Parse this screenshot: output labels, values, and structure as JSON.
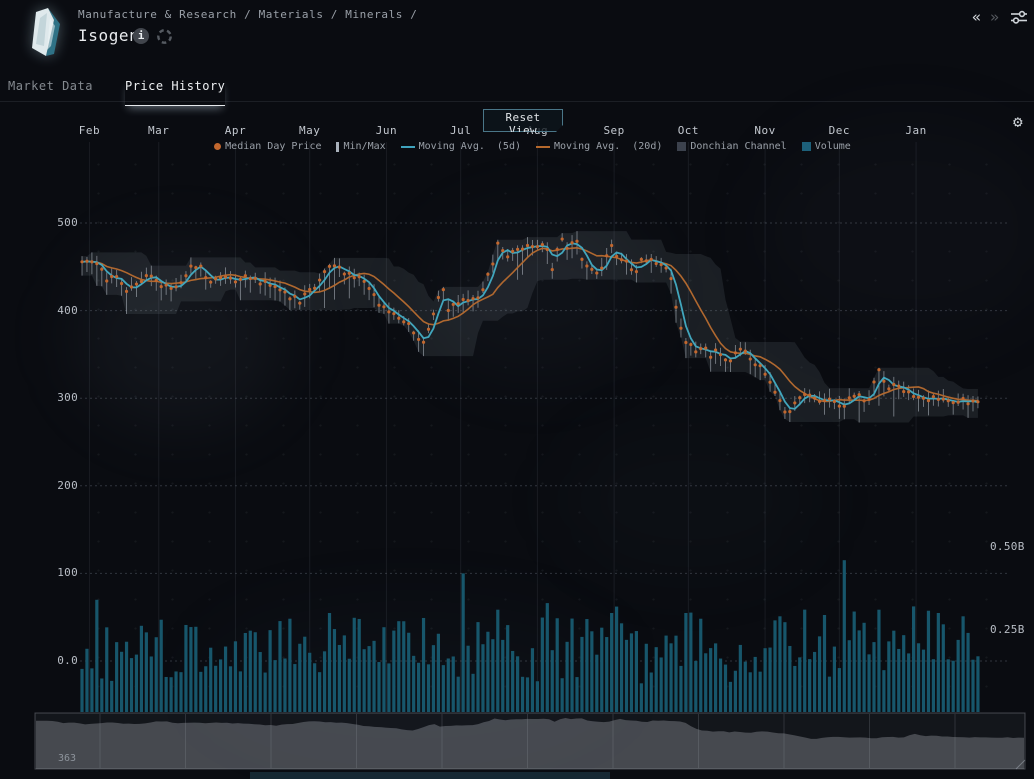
{
  "header": {
    "breadcrumb": "Manufacture & Research / Materials / Minerals /",
    "title": "Isogen"
  },
  "icons": {
    "info": "i",
    "gear": "⚙",
    "item_icon_name": "isogen-crystal"
  },
  "nav": {
    "back": "«",
    "forward": "»"
  },
  "tabs": [
    {
      "label": "Market Data",
      "active": false
    },
    {
      "label": "Price History",
      "active": true
    }
  ],
  "chart_data": {
    "type": "line",
    "reset_button": "Reset View",
    "days_count": "363",
    "months": [
      "Feb",
      "Mar",
      "Apr",
      "May",
      "Jun",
      "Jul",
      "Aug",
      "Sep",
      "Oct",
      "Nov",
      "Dec",
      "Jan"
    ],
    "month_tick_days": [
      3,
      31,
      62,
      92,
      123,
      153,
      184,
      215,
      245,
      276,
      306,
      337
    ],
    "price_ticks": [
      {
        "label": "500",
        "value": 500
      },
      {
        "label": "400",
        "value": 400
      },
      {
        "label": "300",
        "value": 300
      },
      {
        "label": "200",
        "value": 200
      },
      {
        "label": "100",
        "value": 100
      },
      {
        "label": "0.0",
        "value": 0
      }
    ],
    "volume_ticks": [
      {
        "label": "0.50B",
        "value": 0.5
      },
      {
        "label": "0.25B",
        "value": 0.25
      }
    ],
    "price_axis_range": [
      0,
      520
    ],
    "volume_axis_range": [
      0,
      0.55
    ],
    "grid": true,
    "legend_position": "top-center",
    "legend": [
      {
        "label": "Median Day Price",
        "swatch": "dot",
        "color": "#c2672e"
      },
      {
        "label": "Min/Max",
        "swatch": "vbar",
        "color": "#aab2bc"
      },
      {
        "label": "Moving Avg.  (5d)",
        "swatch": "line",
        "color": "#3fa3bd"
      },
      {
        "label": "Moving Avg.  (20d)",
        "swatch": "line",
        "color": "#b5682c"
      },
      {
        "label": "Donchian Channel",
        "swatch": "square",
        "color": "#3c424d"
      },
      {
        "label": "Volume",
        "swatch": "square",
        "color": "#1d607a"
      }
    ],
    "total_days": 364,
    "sample_step_days": 2,
    "noise_seed": 42,
    "median_price_waypoints": [
      [
        0,
        455
      ],
      [
        5,
        458
      ],
      [
        10,
        436
      ],
      [
        14,
        442
      ],
      [
        18,
        424
      ],
      [
        23,
        428
      ],
      [
        27,
        446
      ],
      [
        31,
        430
      ],
      [
        36,
        424
      ],
      [
        41,
        432
      ],
      [
        44,
        452
      ],
      [
        48,
        448
      ],
      [
        53,
        430
      ],
      [
        57,
        441
      ],
      [
        62,
        434
      ],
      [
        66,
        440
      ],
      [
        70,
        434
      ],
      [
        75,
        430
      ],
      [
        80,
        424
      ],
      [
        85,
        415
      ],
      [
        88,
        411
      ],
      [
        92,
        424
      ],
      [
        95,
        428
      ],
      [
        98,
        448
      ],
      [
        102,
        453
      ],
      [
        106,
        444
      ],
      [
        110,
        439
      ],
      [
        114,
        432
      ],
      [
        118,
        415
      ],
      [
        120,
        405
      ],
      [
        123,
        400
      ],
      [
        127,
        391
      ],
      [
        132,
        384
      ],
      [
        137,
        360
      ],
      [
        139,
        365
      ],
      [
        141,
        387
      ],
      [
        144,
        415
      ],
      [
        146,
        421
      ],
      [
        148,
        402
      ],
      [
        152,
        410
      ],
      [
        157,
        412
      ],
      [
        161,
        414
      ],
      [
        164,
        443
      ],
      [
        166,
        455
      ],
      [
        168,
        477
      ],
      [
        170,
        465
      ],
      [
        171,
        455
      ],
      [
        173,
        468
      ],
      [
        176,
        470
      ],
      [
        179,
        471
      ],
      [
        183,
        473
      ],
      [
        186,
        474
      ],
      [
        189,
        470
      ],
      [
        190,
        450
      ],
      [
        192,
        468
      ],
      [
        195,
        485
      ],
      [
        196,
        471
      ],
      [
        198,
        475
      ],
      [
        200,
        477
      ],
      [
        202,
        455
      ],
      [
        204,
        449
      ],
      [
        206,
        446
      ],
      [
        209,
        446
      ],
      [
        211,
        449
      ],
      [
        213,
        483
      ],
      [
        215,
        460
      ],
      [
        217,
        462
      ],
      [
        220,
        457
      ],
      [
        222,
        449
      ],
      [
        224,
        444
      ],
      [
        226,
        462
      ],
      [
        228,
        460
      ],
      [
        230,
        462
      ],
      [
        232,
        452
      ],
      [
        234,
        450
      ],
      [
        236,
        448
      ],
      [
        238,
        438
      ],
      [
        240,
        405
      ],
      [
        242,
        381
      ],
      [
        244,
        366
      ],
      [
        246,
        358
      ],
      [
        249,
        353
      ],
      [
        251,
        360
      ],
      [
        254,
        349
      ],
      [
        257,
        354
      ],
      [
        259,
        346
      ],
      [
        262,
        346
      ],
      [
        265,
        355
      ],
      [
        267,
        360
      ],
      [
        270,
        342
      ],
      [
        272,
        337
      ],
      [
        274,
        338
      ],
      [
        277,
        327
      ],
      [
        279,
        308
      ],
      [
        281,
        300
      ],
      [
        283,
        296
      ],
      [
        285,
        275
      ],
      [
        287,
        289
      ],
      [
        290,
        301
      ],
      [
        293,
        303
      ],
      [
        295,
        301
      ],
      [
        297,
        298
      ],
      [
        299,
        300
      ],
      [
        302,
        301
      ],
      [
        305,
        295
      ],
      [
        308,
        293
      ],
      [
        310,
        298
      ],
      [
        312,
        300
      ],
      [
        314,
        301
      ],
      [
        316,
        296
      ],
      [
        319,
        305
      ],
      [
        321,
        338
      ],
      [
        323,
        331
      ],
      [
        325,
        310
      ],
      [
        328,
        315
      ],
      [
        330,
        313
      ],
      [
        333,
        309
      ],
      [
        335,
        304
      ],
      [
        337,
        301
      ],
      [
        340,
        298
      ],
      [
        343,
        300
      ],
      [
        345,
        298
      ],
      [
        348,
        300
      ],
      [
        351,
        296
      ],
      [
        353,
        298
      ],
      [
        356,
        300
      ],
      [
        358,
        295
      ],
      [
        361,
        298
      ],
      [
        363,
        295
      ]
    ],
    "volume_waypoints_B": [
      [
        0,
        0.17
      ],
      [
        20,
        0.15
      ],
      [
        40,
        0.16
      ],
      [
        60,
        0.15
      ],
      [
        80,
        0.16
      ],
      [
        100,
        0.17
      ],
      [
        120,
        0.16
      ],
      [
        140,
        0.17
      ],
      [
        160,
        0.16
      ],
      [
        180,
        0.17
      ],
      [
        200,
        0.16
      ],
      [
        215,
        0.18
      ],
      [
        230,
        0.15
      ],
      [
        245,
        0.17
      ],
      [
        260,
        0.15
      ],
      [
        275,
        0.16
      ],
      [
        290,
        0.17
      ],
      [
        305,
        0.19
      ],
      [
        320,
        0.17
      ],
      [
        335,
        0.18
      ],
      [
        350,
        0.18
      ],
      [
        362,
        0.17
      ]
    ],
    "volume_spikes_B": [
      [
        6,
        0.34
      ],
      [
        100,
        0.3
      ],
      [
        154,
        0.42
      ],
      [
        168,
        0.31
      ],
      [
        188,
        0.33
      ],
      [
        214,
        0.3
      ],
      [
        244,
        0.3
      ],
      [
        282,
        0.29
      ],
      [
        308,
        0.46
      ],
      [
        322,
        0.31
      ],
      [
        336,
        0.32
      ],
      [
        346,
        0.3
      ],
      [
        356,
        0.29
      ]
    ]
  },
  "colors": {
    "background": "#0a0c11",
    "median_dot": "#c2672e",
    "ma5": "#41a6bd",
    "ma20": "#b0682f",
    "volume_bar": "#17566b",
    "donchian_fill": "rgba(160,170,185,0.12)",
    "minmax_line": "rgba(205,212,222,0.52)",
    "grid_line": "rgba(140,150,165,0.30)",
    "accent_border": "#4a7688"
  }
}
